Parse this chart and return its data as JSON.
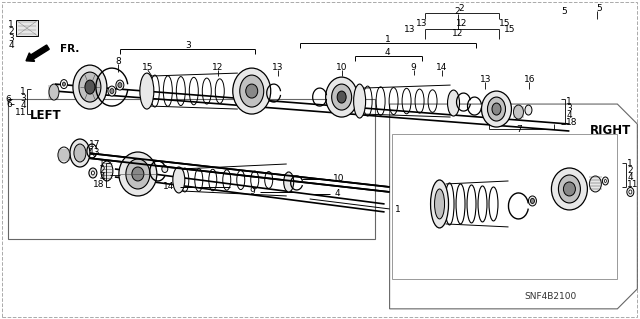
{
  "bg_color": "#ffffff",
  "line_color": "#000000",
  "diagram_code": "SNF4B2100",
  "label_RIGHT": "RIGHT",
  "label_LEFT": "LEFT",
  "label_FR": "FR.",
  "fig_width": 6.4,
  "fig_height": 3.19,
  "dpi": 100,
  "gray_light": "#e8e8e8",
  "gray_mid": "#c0c0c0",
  "gray_dark": "#888888",
  "white": "#ffffff"
}
